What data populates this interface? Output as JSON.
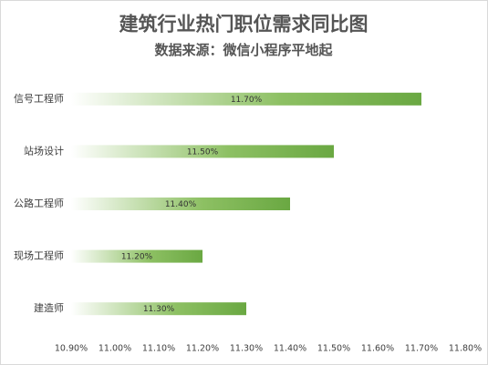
{
  "chart_data": {
    "type": "bar",
    "orientation": "horizontal",
    "title": "建筑行业热门职位需求同比图",
    "subtitle": "数据来源：微信小程序平地起",
    "categories": [
      "信号工程师",
      "站场设计",
      "公路工程师",
      "现场工程师",
      "建造师"
    ],
    "values": [
      11.7,
      11.5,
      11.4,
      11.2,
      11.3
    ],
    "value_labels": [
      "11.70%",
      "11.50%",
      "11.40%",
      "11.20%",
      "11.30%"
    ],
    "color": "#6aa842",
    "xlim": [
      10.9,
      11.8
    ],
    "xticks": [
      {
        "value": 10.9,
        "label": "10.90%"
      },
      {
        "value": 11.0,
        "label": "11.00%"
      },
      {
        "value": 11.1,
        "label": "11.10%"
      },
      {
        "value": 11.2,
        "label": "11.20%"
      },
      {
        "value": 11.3,
        "label": "11.30%"
      },
      {
        "value": 11.4,
        "label": "11.40%"
      },
      {
        "value": 11.5,
        "label": "11.50%"
      },
      {
        "value": 11.6,
        "label": "11.60%"
      },
      {
        "value": 11.7,
        "label": "11.70%"
      },
      {
        "value": 11.8,
        "label": "11.80%"
      }
    ],
    "grid": false
  }
}
